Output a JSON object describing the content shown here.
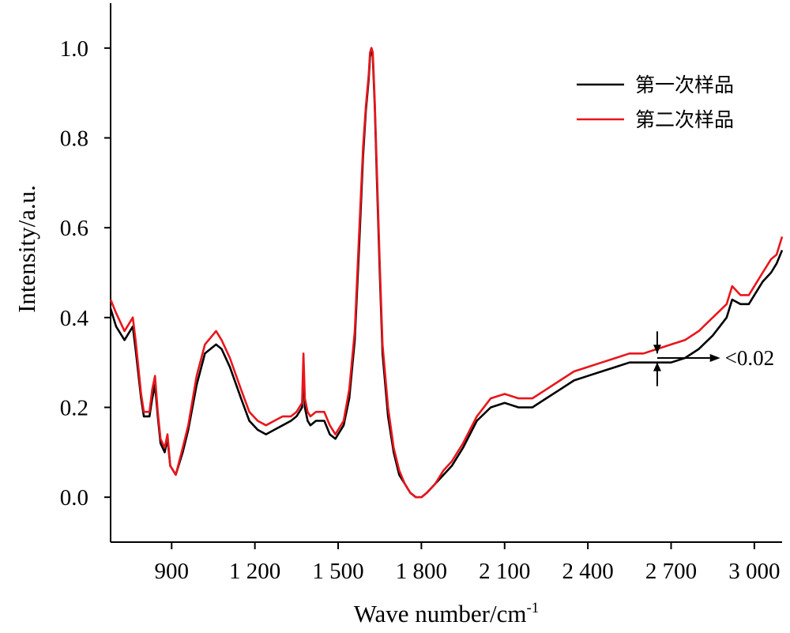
{
  "chart_data": {
    "type": "line",
    "xlabel": "Wave number/cm",
    "xlabel_superscript": "-1",
    "ylabel": "Intensity/a.u.",
    "xlim": [
      680,
      3100
    ],
    "ylim": [
      -0.1,
      1.1
    ],
    "xticks": [
      900,
      1200,
      1500,
      1800,
      2100,
      2400,
      2700,
      3000
    ],
    "xtick_labels": [
      "900",
      "1 200",
      "1 500",
      "1 800",
      "2 100",
      "2 400",
      "2 700",
      "3 000"
    ],
    "yticks": [
      0.0,
      0.2,
      0.4,
      0.6,
      0.8,
      1.0
    ],
    "ytick_labels": [
      "0.0",
      "0.2",
      "0.4",
      "0.6",
      "0.8",
      "1.0"
    ],
    "grid": false,
    "legend_position": "top-right",
    "series": [
      {
        "name": "第一次样品",
        "color": "#000000",
        "x": [
          680,
          700,
          730,
          760,
          770,
          790,
          800,
          820,
          830,
          840,
          850,
          860,
          875,
          885,
          895,
          915,
          940,
          960,
          990,
          1020,
          1060,
          1080,
          1110,
          1150,
          1180,
          1210,
          1240,
          1270,
          1300,
          1330,
          1350,
          1370,
          1375,
          1380,
          1390,
          1400,
          1420,
          1450,
          1470,
          1490,
          1500,
          1520,
          1540,
          1560,
          1575,
          1590,
          1600,
          1610,
          1615,
          1620,
          1625,
          1632,
          1640,
          1650,
          1660,
          1680,
          1700,
          1720,
          1740,
          1760,
          1780,
          1800,
          1820,
          1850,
          1880,
          1910,
          1950,
          2000,
          2050,
          2100,
          2150,
          2200,
          2250,
          2300,
          2350,
          2400,
          2450,
          2500,
          2550,
          2600,
          2650,
          2700,
          2750,
          2800,
          2850,
          2900,
          2920,
          2950,
          2980,
          3000,
          3030,
          3060,
          3080,
          3100
        ],
        "y": [
          0.42,
          0.38,
          0.35,
          0.38,
          0.33,
          0.22,
          0.18,
          0.18,
          0.22,
          0.25,
          0.18,
          0.12,
          0.1,
          0.13,
          0.07,
          0.05,
          0.1,
          0.15,
          0.25,
          0.32,
          0.34,
          0.33,
          0.29,
          0.22,
          0.17,
          0.15,
          0.14,
          0.15,
          0.16,
          0.17,
          0.18,
          0.2,
          0.29,
          0.2,
          0.17,
          0.16,
          0.17,
          0.17,
          0.14,
          0.13,
          0.14,
          0.16,
          0.22,
          0.35,
          0.55,
          0.76,
          0.86,
          0.93,
          0.98,
          1.0,
          0.98,
          0.87,
          0.7,
          0.5,
          0.32,
          0.18,
          0.1,
          0.05,
          0.03,
          0.01,
          0.0,
          0.0,
          0.01,
          0.03,
          0.05,
          0.07,
          0.11,
          0.17,
          0.2,
          0.21,
          0.2,
          0.2,
          0.22,
          0.24,
          0.26,
          0.27,
          0.28,
          0.29,
          0.3,
          0.3,
          0.3,
          0.3,
          0.31,
          0.33,
          0.36,
          0.4,
          0.44,
          0.43,
          0.43,
          0.45,
          0.48,
          0.5,
          0.52,
          0.55
        ]
      },
      {
        "name": "第二次样品",
        "color": "#e8161b",
        "x": [
          680,
          700,
          730,
          760,
          770,
          790,
          800,
          820,
          830,
          840,
          850,
          860,
          875,
          885,
          895,
          915,
          940,
          960,
          990,
          1020,
          1060,
          1080,
          1110,
          1150,
          1180,
          1210,
          1240,
          1270,
          1300,
          1330,
          1350,
          1370,
          1375,
          1380,
          1390,
          1400,
          1420,
          1450,
          1470,
          1490,
          1500,
          1520,
          1540,
          1560,
          1575,
          1590,
          1600,
          1610,
          1615,
          1620,
          1625,
          1632,
          1640,
          1650,
          1660,
          1680,
          1700,
          1720,
          1740,
          1760,
          1780,
          1800,
          1820,
          1850,
          1880,
          1910,
          1950,
          2000,
          2050,
          2100,
          2150,
          2200,
          2250,
          2300,
          2350,
          2400,
          2450,
          2500,
          2550,
          2600,
          2650,
          2700,
          2750,
          2800,
          2850,
          2900,
          2920,
          2950,
          2980,
          3000,
          3030,
          3060,
          3080,
          3100
        ],
        "y": [
          0.44,
          0.41,
          0.37,
          0.4,
          0.35,
          0.23,
          0.19,
          0.19,
          0.24,
          0.27,
          0.19,
          0.13,
          0.11,
          0.14,
          0.07,
          0.05,
          0.11,
          0.16,
          0.27,
          0.34,
          0.37,
          0.35,
          0.31,
          0.24,
          0.19,
          0.17,
          0.16,
          0.17,
          0.18,
          0.18,
          0.19,
          0.21,
          0.32,
          0.22,
          0.19,
          0.18,
          0.19,
          0.19,
          0.16,
          0.14,
          0.15,
          0.17,
          0.24,
          0.37,
          0.58,
          0.78,
          0.87,
          0.94,
          0.99,
          1.0,
          0.99,
          0.88,
          0.72,
          0.52,
          0.34,
          0.2,
          0.11,
          0.06,
          0.03,
          0.01,
          0.0,
          0.0,
          0.01,
          0.03,
          0.06,
          0.08,
          0.12,
          0.18,
          0.22,
          0.23,
          0.22,
          0.22,
          0.24,
          0.26,
          0.28,
          0.29,
          0.3,
          0.31,
          0.32,
          0.32,
          0.33,
          0.34,
          0.35,
          0.37,
          0.4,
          0.43,
          0.47,
          0.45,
          0.45,
          0.47,
          0.5,
          0.53,
          0.54,
          0.58
        ]
      }
    ],
    "annotation": {
      "text": "<0.02",
      "x": 2650,
      "y_low": 0.3,
      "y_high": 0.32,
      "arrow_to_x": 2840
    }
  }
}
